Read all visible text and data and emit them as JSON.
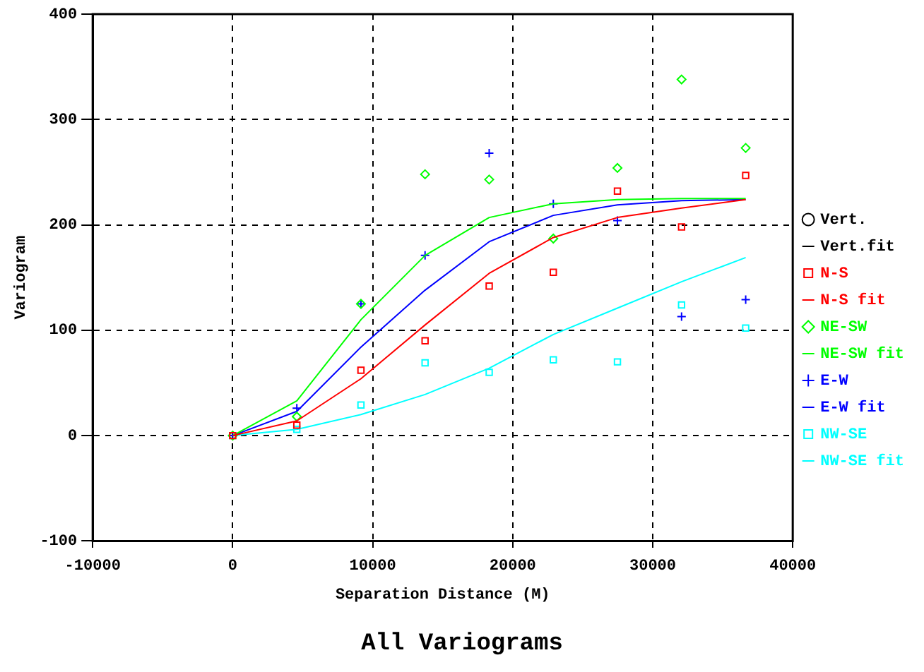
{
  "chart_data": {
    "type": "scatter",
    "title": "All Variograms",
    "xlabel": "Separation Distance (M)",
    "ylabel": "Variogram",
    "xlim": [
      -10000,
      40000
    ],
    "xticks": [
      -10000,
      0,
      10000,
      20000,
      30000,
      40000
    ],
    "ylim": [
      -100,
      400
    ],
    "yticks": [
      -100,
      0,
      100,
      200,
      300,
      400
    ],
    "grid": true,
    "legend": "right",
    "x": [
      0,
      4580,
      9160,
      13740,
      18320,
      22900,
      27480,
      32060,
      36640
    ],
    "series": [
      {
        "name": "Vert.",
        "marker": "circle",
        "color": "#000000",
        "values": [
          null,
          null,
          null,
          null,
          null,
          null,
          null,
          null,
          null
        ]
      },
      {
        "name": "Vert.fit",
        "type": "line",
        "marker": "none",
        "color": "#000000",
        "values": [
          null,
          null,
          null,
          null,
          null,
          null,
          null,
          null,
          null
        ]
      },
      {
        "name": "N-S",
        "marker": "square",
        "color": "#ff0000",
        "values": [
          0,
          10,
          62,
          90,
          142,
          155,
          232,
          198,
          247
        ]
      },
      {
        "name": "N-S fit",
        "type": "line",
        "marker": "none",
        "color": "#ff0000",
        "values": [
          0,
          14,
          54,
          105,
          154,
          188,
          207,
          216,
          224
        ]
      },
      {
        "name": "NE-SW",
        "marker": "diamond",
        "color": "#00ff00",
        "values": [
          0,
          18,
          125,
          248,
          243,
          187,
          254,
          338,
          273
        ]
      },
      {
        "name": "NE-SW fit",
        "type": "line",
        "marker": "none",
        "color": "#00ff00",
        "values": [
          0,
          33,
          110,
          171,
          207,
          220,
          224,
          225,
          225
        ]
      },
      {
        "name": "E-W",
        "marker": "cross",
        "color": "#0000ff",
        "values": [
          0,
          26,
          125,
          171,
          268,
          220,
          204,
          113,
          129
        ]
      },
      {
        "name": "E-W fit",
        "type": "line",
        "marker": "none",
        "color": "#0000ff",
        "values": [
          0,
          23,
          84,
          138,
          184,
          209,
          219,
          223,
          224
        ]
      },
      {
        "name": "NW-SE",
        "marker": "square",
        "color": "#00ffff",
        "values": [
          0,
          6,
          29,
          69,
          60,
          72,
          70,
          124,
          102
        ]
      },
      {
        "name": "NW-SE fit",
        "type": "line",
        "marker": "none",
        "color": "#00ffff",
        "values": [
          0,
          6,
          20,
          39,
          64,
          96,
          121,
          146,
          169
        ]
      }
    ]
  }
}
